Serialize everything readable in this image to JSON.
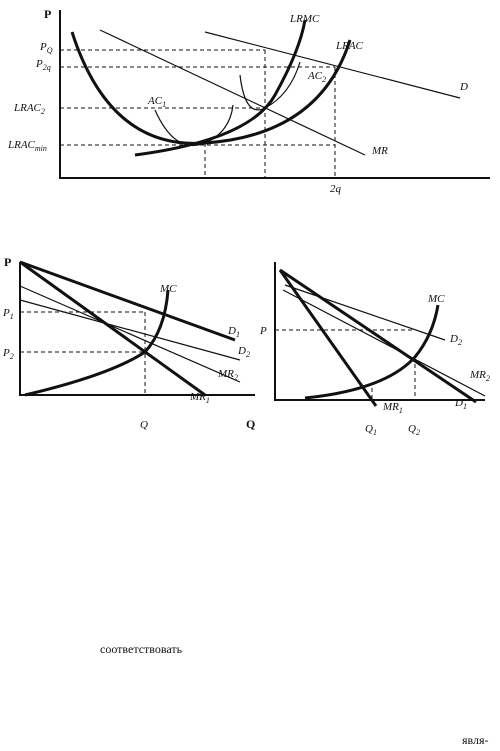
{
  "diagram1": {
    "labels": {
      "p_axis": "P",
      "pq": {
        "text": "P",
        "sub": "Q"
      },
      "p2q": {
        "text": "P",
        "sub": "2q"
      },
      "lrac2": {
        "text": "LRAC",
        "sub": "2"
      },
      "lracmin": {
        "text": "LRAC",
        "sub": "min"
      },
      "lrmc": "LRMC",
      "lrac": "LRAC",
      "ac1": {
        "text": "AC",
        "sub": "1"
      },
      "ac2": {
        "text": "AC",
        "sub": "2"
      },
      "d": "D",
      "mr": "MR",
      "q2": "2q"
    }
  },
  "diagram2": {
    "labels": {
      "p_axis": "P",
      "p1": {
        "text": "P",
        "sub": "1"
      },
      "p2": {
        "text": "P",
        "sub": "2"
      },
      "mc": "MC",
      "d1": {
        "text": "D",
        "sub": "1"
      },
      "d2": {
        "text": "D",
        "sub": "2"
      },
      "mr2": {
        "text": "MR",
        "sub": "2"
      },
      "mr1": {
        "text": "MR",
        "sub": "1"
      },
      "q": "Q",
      "q_axis": "Q"
    }
  },
  "diagram3": {
    "labels": {
      "p": "P",
      "mc": "MC",
      "d2": {
        "text": "D",
        "sub": "2"
      },
      "mr2": {
        "text": "MR",
        "sub": "2"
      },
      "d1": {
        "text": "D",
        "sub": "1"
      },
      "mr1": {
        "text": "MR",
        "sub": "1"
      },
      "q1": {
        "text": "Q",
        "sub": "1"
      },
      "q2": {
        "text": "Q",
        "sub": "2"
      }
    }
  },
  "text": {
    "word1": "соответствовать",
    "word2": "явля-"
  }
}
